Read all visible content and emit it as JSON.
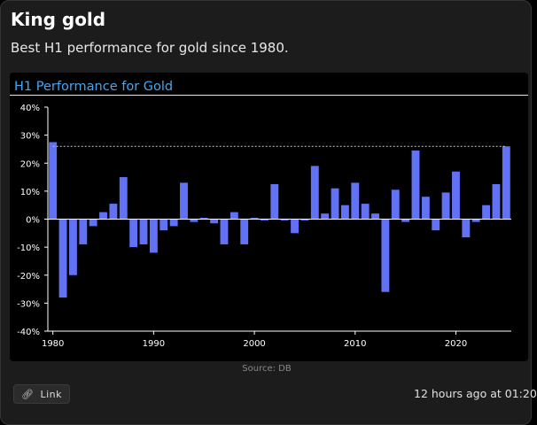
{
  "card": {
    "title": "King gold",
    "subtitle": "Best H1 performance for gold since 1980.",
    "source": "Source: DB",
    "link_label": "Link",
    "link_icon": "link-icon",
    "timestamp": "12 hours ago at 01:20"
  },
  "colors": {
    "bar": "#6272f5",
    "title": "#3fa9f5",
    "axis": "#ffffff",
    "reference_line": "#cccccc"
  },
  "chart_data": {
    "type": "bar",
    "title": "H1 Performance for Gold",
    "xlabel": "",
    "ylabel": "",
    "ylim": [
      -40,
      40
    ],
    "yticks": [
      -40,
      -30,
      -20,
      -10,
      0,
      10,
      20,
      30,
      40
    ],
    "ytick_labels": [
      "-40%",
      "-30%",
      "-20%",
      "-10%",
      "0%",
      "10%",
      "20%",
      "30%",
      "40%"
    ],
    "xticks": [
      1980,
      1990,
      2000,
      2010,
      2020
    ],
    "grid": false,
    "reference_line": 26,
    "series": [
      {
        "x": [
          1980,
          1981,
          1982,
          1983,
          1984,
          1985,
          1986,
          1987,
          1988,
          1989,
          1990,
          1991,
          1992,
          1993,
          1994,
          1995,
          1996,
          1997,
          1998,
          1999,
          2000,
          2001,
          2002,
          2003,
          2004,
          2005,
          2006,
          2007,
          2008,
          2009,
          2010,
          2011,
          2012,
          2013,
          2014,
          2015,
          2016,
          2017,
          2018,
          2019,
          2020,
          2021,
          2022,
          2023,
          2024,
          2025
        ],
        "values": [
          27.5,
          -28,
          -20,
          -9,
          -2.5,
          2.5,
          5.5,
          15,
          -10,
          -9,
          -12,
          -4,
          -2.5,
          13,
          -1,
          0.5,
          -1.5,
          -9,
          2.5,
          -9,
          0.5,
          -0.5,
          12.5,
          -0.5,
          -5,
          -0.5,
          19,
          2,
          11,
          5,
          13,
          5.5,
          2,
          -26,
          10.5,
          -1,
          24.5,
          8,
          -4,
          9.5,
          17,
          -6.5,
          -1,
          5,
          12.5,
          26
        ]
      }
    ]
  }
}
